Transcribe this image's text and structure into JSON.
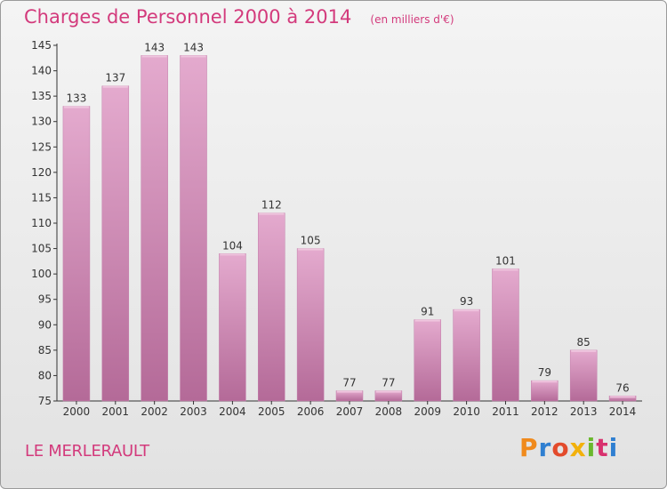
{
  "header": {
    "title": "Charges de Personnel 2000 à 2014",
    "unit": "(en milliers d'€)"
  },
  "footer": {
    "commune": "LE MERLERAULT",
    "logo_text": "Proxiti",
    "logo_colors": [
      "#f08a1c",
      "#2f7fd1",
      "#e34b2c",
      "#f2b10c",
      "#6bb82e",
      "#d8326e",
      "#2f7fd1"
    ]
  },
  "colors": {
    "bar_top": "#e4aace",
    "bar_bottom": "#b46a98",
    "accent": "#d33a7c"
  },
  "chart_data": {
    "type": "bar",
    "categories": [
      "2000",
      "2001",
      "2002",
      "2003",
      "2004",
      "2005",
      "2006",
      "2007",
      "2008",
      "2009",
      "2010",
      "2011",
      "2012",
      "2013",
      "2014"
    ],
    "values": [
      133,
      137,
      143,
      143,
      104,
      112,
      105,
      77,
      77,
      91,
      93,
      101,
      79,
      85,
      76
    ],
    "ylim": [
      75,
      145
    ],
    "yticks": [
      75,
      80,
      85,
      90,
      95,
      100,
      105,
      110,
      115,
      120,
      125,
      130,
      135,
      140,
      145
    ],
    "grid": false,
    "data_labels": true
  }
}
